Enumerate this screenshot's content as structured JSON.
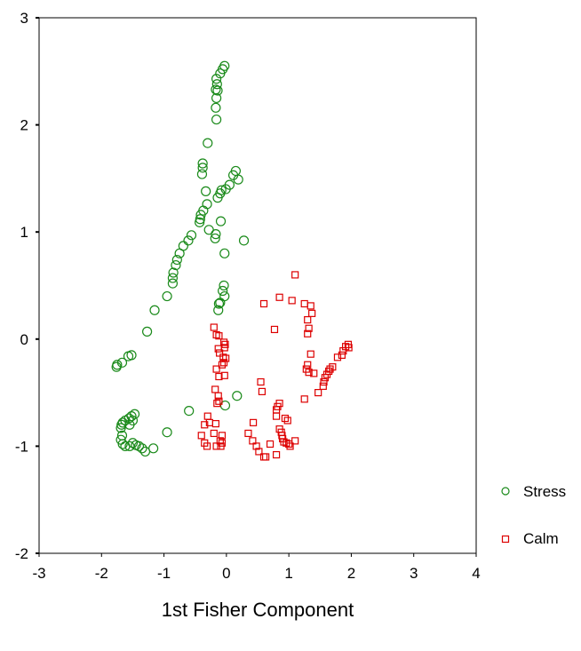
{
  "chart_data": {
    "type": "scatter",
    "title": "",
    "xlabel": "1st Fisher Component",
    "ylabel": "",
    "xlim": [
      -3,
      4
    ],
    "ylim": [
      -2,
      3
    ],
    "xticks": [
      "-3",
      "-2",
      "-1",
      "0",
      "1",
      "2",
      "3",
      "4"
    ],
    "yticks": [
      "-2",
      "-1",
      "0",
      "1",
      "2",
      "3"
    ],
    "grid": false,
    "legend": "right",
    "series": [
      {
        "name": "Stress",
        "marker": "circle",
        "color": "#1a8a1a",
        "points": [
          [
            -0.03,
            2.55
          ],
          [
            -0.06,
            2.52
          ],
          [
            -0.1,
            2.48
          ],
          [
            -0.16,
            2.43
          ],
          [
            -0.15,
            2.38
          ],
          [
            -0.17,
            2.33
          ],
          [
            -0.14,
            2.32
          ],
          [
            -0.16,
            2.25
          ],
          [
            -0.17,
            2.16
          ],
          [
            -0.16,
            2.05
          ],
          [
            -0.3,
            1.83
          ],
          [
            -0.38,
            1.64
          ],
          [
            -0.38,
            1.6
          ],
          [
            -0.39,
            1.54
          ],
          [
            0.15,
            1.57
          ],
          [
            0.11,
            1.53
          ],
          [
            0.19,
            1.49
          ],
          [
            0.05,
            1.44
          ],
          [
            -0.01,
            1.4
          ],
          [
            -0.08,
            1.39
          ],
          [
            -0.1,
            1.36
          ],
          [
            -0.14,
            1.32
          ],
          [
            -0.33,
            1.38
          ],
          [
            -0.31,
            1.26
          ],
          [
            -0.37,
            1.2
          ],
          [
            -0.41,
            1.16
          ],
          [
            -0.42,
            1.12
          ],
          [
            -0.43,
            1.09
          ],
          [
            -0.28,
            1.02
          ],
          [
            -0.17,
            0.98
          ],
          [
            -0.18,
            0.94
          ],
          [
            -0.56,
            0.97
          ],
          [
            -0.61,
            0.92
          ],
          [
            -0.69,
            0.87
          ],
          [
            -0.75,
            0.8
          ],
          [
            -0.79,
            0.74
          ],
          [
            -0.81,
            0.69
          ],
          [
            -0.85,
            0.62
          ],
          [
            -0.86,
            0.57
          ],
          [
            -0.86,
            0.52
          ],
          [
            -0.09,
            1.1
          ],
          [
            -0.03,
            0.8
          ],
          [
            0.28,
            0.92
          ],
          [
            -0.95,
            0.4
          ],
          [
            -1.15,
            0.27
          ],
          [
            -1.27,
            0.07
          ],
          [
            -0.04,
            0.5
          ],
          [
            -0.06,
            0.45
          ],
          [
            -0.03,
            0.4
          ],
          [
            -0.1,
            0.34
          ],
          [
            -0.12,
            0.33
          ],
          [
            -0.13,
            0.27
          ],
          [
            -1.52,
            -0.15
          ],
          [
            -1.57,
            -0.16
          ],
          [
            -1.67,
            -0.22
          ],
          [
            -1.75,
            -0.24
          ],
          [
            -1.76,
            -0.26
          ],
          [
            0.17,
            -0.53
          ],
          [
            -0.02,
            -0.62
          ],
          [
            -0.6,
            -0.67
          ],
          [
            -1.47,
            -0.7
          ],
          [
            -1.52,
            -0.72
          ],
          [
            -1.56,
            -0.74
          ],
          [
            -1.62,
            -0.76
          ],
          [
            -1.66,
            -0.78
          ],
          [
            -1.68,
            -0.8
          ],
          [
            -1.69,
            -0.83
          ],
          [
            -1.55,
            -0.8
          ],
          [
            -1.5,
            -0.76
          ],
          [
            -0.95,
            -0.87
          ],
          [
            -1.67,
            -0.9
          ],
          [
            -1.69,
            -0.94
          ],
          [
            -1.66,
            -0.98
          ],
          [
            -1.62,
            -1.0
          ],
          [
            -1.55,
            -1.0
          ],
          [
            -1.5,
            -0.97
          ],
          [
            -1.45,
            -0.99
          ],
          [
            -1.4,
            -1.0
          ],
          [
            -1.35,
            -1.02
          ],
          [
            -1.3,
            -1.05
          ],
          [
            -1.17,
            -1.02
          ]
        ]
      },
      {
        "name": "Calm",
        "marker": "square",
        "color": "#dd0000",
        "points": [
          [
            1.1,
            0.6
          ],
          [
            0.85,
            0.39
          ],
          [
            1.05,
            0.36
          ],
          [
            0.6,
            0.33
          ],
          [
            1.25,
            0.33
          ],
          [
            1.35,
            0.31
          ],
          [
            1.37,
            0.24
          ],
          [
            1.3,
            0.18
          ],
          [
            0.77,
            0.09
          ],
          [
            1.32,
            0.1
          ],
          [
            1.3,
            0.05
          ],
          [
            -0.2,
            0.11
          ],
          [
            -0.16,
            0.04
          ],
          [
            -0.12,
            0.03
          ],
          [
            -0.04,
            -0.03
          ],
          [
            -0.02,
            -0.05
          ],
          [
            -0.03,
            -0.08
          ],
          [
            -0.13,
            -0.09
          ],
          [
            -0.11,
            -0.13
          ],
          [
            -0.05,
            -0.17
          ],
          [
            -0.01,
            -0.18
          ],
          [
            -0.04,
            -0.22
          ],
          [
            -0.07,
            -0.24
          ],
          [
            -0.16,
            -0.28
          ],
          [
            -0.03,
            -0.34
          ],
          [
            -0.12,
            -0.35
          ],
          [
            1.35,
            -0.14
          ],
          [
            1.3,
            -0.24
          ],
          [
            1.28,
            -0.28
          ],
          [
            1.32,
            -0.31
          ],
          [
            1.4,
            -0.32
          ],
          [
            1.95,
            -0.05
          ],
          [
            1.91,
            -0.07
          ],
          [
            1.96,
            -0.08
          ],
          [
            1.87,
            -0.11
          ],
          [
            1.85,
            -0.15
          ],
          [
            1.78,
            -0.17
          ],
          [
            1.7,
            -0.26
          ],
          [
            1.66,
            -0.28
          ],
          [
            1.64,
            -0.3
          ],
          [
            1.61,
            -0.33
          ],
          [
            1.58,
            -0.36
          ],
          [
            1.56,
            -0.4
          ],
          [
            1.55,
            -0.44
          ],
          [
            1.47,
            -0.5
          ],
          [
            1.25,
            -0.56
          ],
          [
            0.55,
            -0.4
          ],
          [
            0.57,
            -0.49
          ],
          [
            -0.18,
            -0.47
          ],
          [
            -0.13,
            -0.53
          ],
          [
            -0.12,
            -0.58
          ],
          [
            -0.15,
            -0.6
          ],
          [
            0.85,
            -0.6
          ],
          [
            0.82,
            -0.63
          ],
          [
            0.8,
            -0.66
          ],
          [
            0.8,
            -0.72
          ],
          [
            0.94,
            -0.74
          ],
          [
            0.98,
            -0.76
          ],
          [
            -0.3,
            -0.72
          ],
          [
            -0.27,
            -0.78
          ],
          [
            -0.35,
            -0.8
          ],
          [
            -0.17,
            -0.79
          ],
          [
            0.43,
            -0.78
          ],
          [
            0.85,
            -0.84
          ],
          [
            0.88,
            -0.87
          ],
          [
            0.89,
            -0.9
          ],
          [
            0.9,
            -0.93
          ],
          [
            0.92,
            -0.96
          ],
          [
            0.96,
            -0.97
          ],
          [
            1.0,
            -0.98
          ],
          [
            1.02,
            -1.0
          ],
          [
            1.1,
            -0.95
          ],
          [
            -0.4,
            -0.9
          ],
          [
            -0.2,
            -0.88
          ],
          [
            -0.07,
            -0.9
          ],
          [
            -0.1,
            -0.95
          ],
          [
            -0.07,
            -0.97
          ],
          [
            -0.16,
            -1.0
          ],
          [
            -0.09,
            -1.0
          ],
          [
            -0.35,
            -0.97
          ],
          [
            -0.31,
            -1.0
          ],
          [
            0.35,
            -0.88
          ],
          [
            0.42,
            -0.95
          ],
          [
            0.48,
            -1.0
          ],
          [
            0.52,
            -1.05
          ],
          [
            0.6,
            -1.1
          ],
          [
            0.63,
            -1.1
          ],
          [
            0.8,
            -1.08
          ],
          [
            0.7,
            -0.98
          ]
        ]
      }
    ]
  }
}
